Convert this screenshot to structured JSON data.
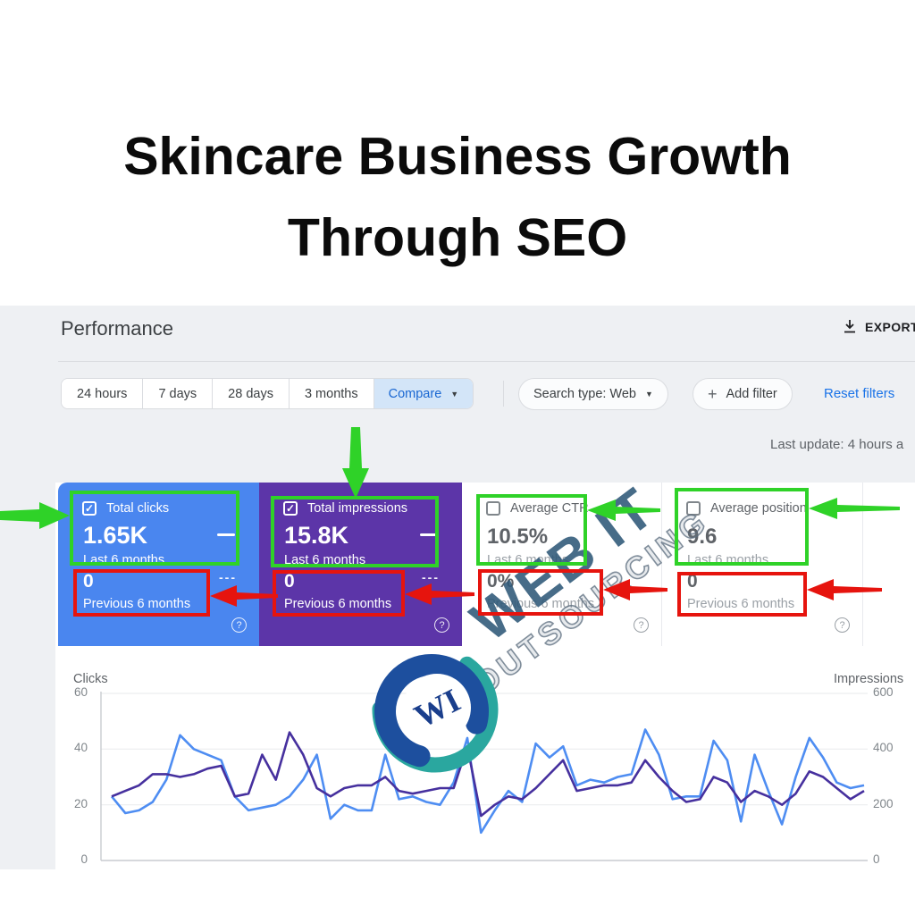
{
  "title": {
    "line1": "Skincare Business Growth",
    "line2": "Through SEO"
  },
  "performance": {
    "title": "Performance",
    "export_label": "EXPORT"
  },
  "toolbar": {
    "time_filters": [
      "24 hours",
      "7 days",
      "28 days",
      "3 months"
    ],
    "compare_label": "Compare",
    "search_type": "Search type: Web",
    "add_filter": "Add filter",
    "reset_filters": "Reset filters",
    "plus_glyph": "+",
    "caret_glyph": "▼"
  },
  "status": {
    "last_update": "Last update: 4 hours a"
  },
  "cards": [
    {
      "label": "Total clicks",
      "checked": true,
      "check_glyph": "✓",
      "value": "1.65K",
      "period": "Last 6 months",
      "prev_value": "0",
      "prev_period": "Previous 6 months",
      "menu_dots": "---",
      "help_glyph": "?",
      "bg": "#4a86ef"
    },
    {
      "label": "Total impressions",
      "checked": true,
      "check_glyph": "✓",
      "value": "15.8K",
      "period": "Last 6 months",
      "prev_value": "0",
      "prev_period": "Previous 6 months",
      "menu_dots": "---",
      "help_glyph": "?",
      "bg": "#5c35a8"
    },
    {
      "label": "Average CTR",
      "checked": false,
      "check_glyph": "",
      "value": "10.5%",
      "period": "Last 6 months",
      "prev_value": "0%",
      "prev_period": "Previous 6 months",
      "menu_dots": "",
      "help_glyph": "?",
      "bg": "#ffffff"
    },
    {
      "label": "Average position",
      "checked": false,
      "check_glyph": "",
      "value": "9.6",
      "period": "Last 6 months",
      "prev_value": "0",
      "prev_period": "Previous 6 months",
      "menu_dots": "",
      "help_glyph": "?",
      "bg": "#ffffff"
    }
  ],
  "watermark": {
    "brand_line1": "WEB IT",
    "brand_line2": "OUTSOURCING",
    "logo_monogram": "WI"
  },
  "chart_data": {
    "type": "line",
    "title": "",
    "grid": true,
    "legend_position": "none",
    "left_axis": {
      "label": "Clicks",
      "ticks": [
        60,
        40,
        20,
        0
      ],
      "range": [
        0,
        60
      ]
    },
    "right_axis": {
      "label": "Impressions",
      "ticks": [
        600,
        400,
        200,
        0
      ],
      "range": [
        0,
        600
      ]
    },
    "series": [
      {
        "name": "Clicks",
        "axis": "left",
        "color": "#4e8df2",
        "values": [
          23,
          17,
          18,
          21,
          29,
          45,
          40,
          38,
          36,
          23,
          18,
          19,
          20,
          23,
          29,
          38,
          15,
          20,
          18,
          18,
          38,
          22,
          23,
          21,
          20,
          28,
          44,
          10,
          18,
          25,
          21,
          42,
          37,
          41,
          27,
          29,
          28,
          30,
          31,
          47,
          38,
          22,
          23,
          23,
          43,
          36,
          14,
          38,
          25,
          13,
          30,
          44,
          37,
          28,
          26,
          27
        ]
      },
      {
        "name": "Impressions",
        "axis": "right",
        "color": "#46309e",
        "values": [
          230,
          250,
          270,
          310,
          310,
          300,
          310,
          330,
          340,
          230,
          240,
          380,
          290,
          460,
          380,
          260,
          230,
          260,
          270,
          270,
          300,
          250,
          240,
          250,
          260,
          260,
          410,
          160,
          200,
          230,
          220,
          260,
          310,
          360,
          250,
          260,
          270,
          270,
          280,
          360,
          300,
          250,
          210,
          220,
          300,
          280,
          210,
          250,
          230,
          200,
          240,
          320,
          300,
          260,
          220,
          250
        ]
      }
    ]
  },
  "colors": {
    "page_bg": "#eef0f3",
    "accent_blue": "#1a73e8",
    "compare_bg": "#d3e5f8",
    "card_blue": "#4a86ef",
    "card_purple": "#5c35a8",
    "line_blue": "#4e8df2",
    "line_purple": "#46309e",
    "annotation_green": "#2fd228",
    "annotation_red": "#e6140e"
  }
}
